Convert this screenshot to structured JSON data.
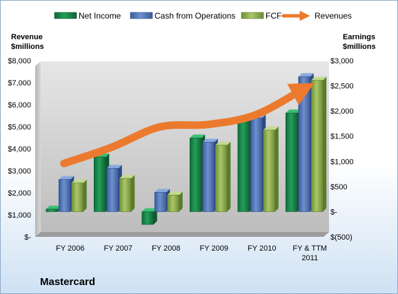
{
  "chart_data": {
    "type": "bar",
    "categories": [
      [
        "FY 2006"
      ],
      [
        "FY 2007"
      ],
      [
        "FY 2008"
      ],
      [
        "FY 2009"
      ],
      [
        "FY 2010"
      ],
      [
        "FY & TTM",
        "2011"
      ]
    ],
    "left_axis": {
      "title_lines": [
        "Revenue",
        "$millions"
      ],
      "range": [
        0,
        8000
      ],
      "ticks": [
        {
          "value": 0,
          "label": "$-"
        },
        {
          "value": 1000,
          "label": "$1,000"
        },
        {
          "value": 2000,
          "label": "$2,000"
        },
        {
          "value": 3000,
          "label": "$3,000"
        },
        {
          "value": 4000,
          "label": "$4,000"
        },
        {
          "value": 5000,
          "label": "$5,000"
        },
        {
          "value": 6000,
          "label": "$6,000"
        },
        {
          "value": 7000,
          "label": "$7,000"
        },
        {
          "value": 8000,
          "label": "$8,000"
        }
      ]
    },
    "right_axis": {
      "title_lines": [
        "Earnings",
        "$millions"
      ],
      "range": [
        -500,
        3000
      ],
      "ticks": [
        {
          "value": -500,
          "label": "$(500)"
        },
        {
          "value": 0,
          "label": "$-"
        },
        {
          "value": 500,
          "label": "$500"
        },
        {
          "value": 1000,
          "label": "$1,000"
        },
        {
          "value": 1500,
          "label": "$1,500"
        },
        {
          "value": 2000,
          "label": "$2,000"
        },
        {
          "value": 2500,
          "label": "$2,500"
        },
        {
          "value": 3000,
          "label": "$3,000"
        }
      ]
    },
    "bar_series": [
      {
        "name": "Net Income",
        "color": "#1f8a4c",
        "values": [
          50,
          1086,
          -254,
          1463,
          1846,
          1960
        ]
      },
      {
        "name": "Cash from Operations",
        "color": "#4f74b8",
        "values": [
          640,
          860,
          385,
          1380,
          1860,
          2680
        ]
      },
      {
        "name": "FCF",
        "color": "#8fb050",
        "values": [
          570,
          660,
          330,
          1320,
          1620,
          2610
        ]
      }
    ],
    "line_series": {
      "name": "Revenues",
      "color": "#ec7a2e",
      "values": [
        3330,
        4070,
        4990,
        5100,
        5540,
        6720
      ]
    },
    "legend_position": "top",
    "grid": false
  },
  "brand": "Mastercard"
}
